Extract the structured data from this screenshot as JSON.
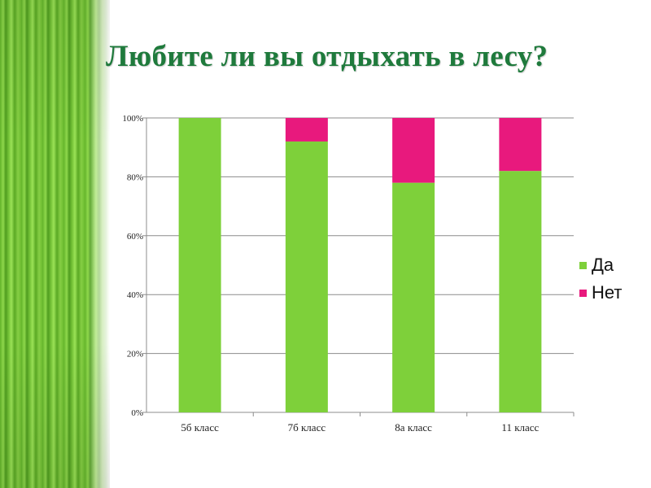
{
  "title": "Любите ли вы отдыхать в лесу?",
  "colors": {
    "title": "#1f7a3c",
    "da": "#7ed03a",
    "net": "#e8197d"
  },
  "chart_data": {
    "type": "bar",
    "stacked": true,
    "percent": true,
    "categories": [
      "5б класс",
      "7б класс",
      "8а класс",
      "11 класс"
    ],
    "series": [
      {
        "name": "Да",
        "values": [
          100,
          92,
          78,
          82
        ],
        "color": "#7ed03a"
      },
      {
        "name": "Нет",
        "values": [
          0,
          8,
          22,
          18
        ],
        "color": "#e8197d"
      }
    ],
    "ylim": [
      0,
      100
    ],
    "yticks": [
      "0%",
      "20%",
      "40%",
      "60%",
      "80%",
      "100%"
    ],
    "grid": true,
    "legend": "right"
  }
}
